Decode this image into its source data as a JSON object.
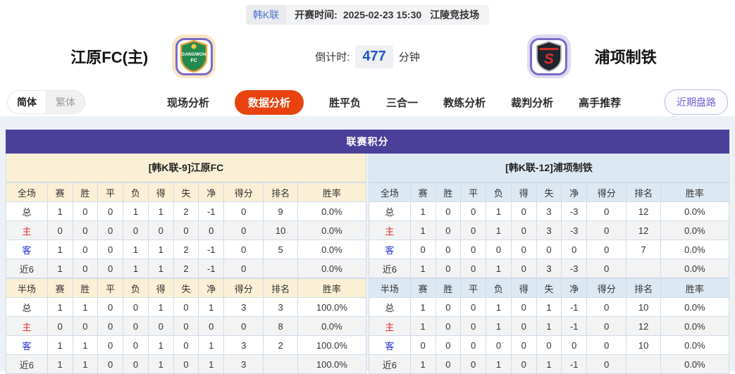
{
  "colors": {
    "accent_purple": "#4b3f99",
    "tab_active_red": "#e8430f",
    "home_header_bg": "#fbf0d6",
    "away_header_bg": "#dde9f2",
    "countdown_blue": "#1c57c4",
    "home_row_label_red": "#e02f2f",
    "away_row_label_blue": "#2334cf"
  },
  "top_bar": {
    "league": "韩K联",
    "kickoff_label": "开赛时间:",
    "kickoff_time": "2025-02-23 15:30",
    "venue": "江陵竞技场"
  },
  "match_header": {
    "home_team": "江原FC(主)",
    "home_logo_line1": "GANGWON",
    "home_logo_line2": "FC",
    "away_team": "浦项制铁",
    "away_logo_letter": "S",
    "countdown_label": "倒计时:",
    "countdown_value": "477",
    "countdown_unit": "分钟"
  },
  "nav": {
    "lang": [
      {
        "label": "简体",
        "active": true
      },
      {
        "label": "繁体",
        "active": false
      }
    ],
    "tabs": [
      {
        "label": "现场分析",
        "active": false
      },
      {
        "label": "数据分析",
        "active": true
      },
      {
        "label": "胜平负",
        "active": false
      },
      {
        "label": "三合一",
        "active": false
      },
      {
        "label": "教练分析",
        "active": false
      },
      {
        "label": "裁判分析",
        "active": false
      },
      {
        "label": "高手推荐",
        "active": false
      }
    ],
    "recent_button": "近期盘路"
  },
  "league_table": {
    "title": "联赛积分",
    "home_header": "[韩K联-9]江原FC",
    "away_header": "[韩K联-12]浦项制铁",
    "full_label": "全场",
    "half_label": "半场",
    "columns": [
      "赛",
      "胜",
      "平",
      "负",
      "得",
      "失",
      "净",
      "得分",
      "排名",
      "胜率"
    ],
    "row_labels": [
      "总",
      "主",
      "客",
      "近6"
    ],
    "home": {
      "full": [
        [
          1,
          0,
          0,
          1,
          1,
          2,
          -1,
          0,
          9,
          "0.0%"
        ],
        [
          0,
          0,
          0,
          0,
          0,
          0,
          0,
          0,
          10,
          "0.0%"
        ],
        [
          1,
          0,
          0,
          1,
          1,
          2,
          -1,
          0,
          5,
          "0.0%"
        ],
        [
          1,
          0,
          0,
          1,
          1,
          2,
          -1,
          0,
          "",
          "0.0%"
        ]
      ],
      "half": [
        [
          1,
          1,
          0,
          0,
          1,
          0,
          1,
          3,
          3,
          "100.0%"
        ],
        [
          0,
          0,
          0,
          0,
          0,
          0,
          0,
          0,
          8,
          "0.0%"
        ],
        [
          1,
          1,
          0,
          0,
          1,
          0,
          1,
          3,
          2,
          "100.0%"
        ],
        [
          1,
          1,
          0,
          0,
          1,
          0,
          1,
          3,
          "",
          "100.0%"
        ]
      ]
    },
    "away": {
      "full": [
        [
          1,
          0,
          0,
          1,
          0,
          3,
          -3,
          0,
          12,
          "0.0%"
        ],
        [
          1,
          0,
          0,
          1,
          0,
          3,
          -3,
          0,
          12,
          "0.0%"
        ],
        [
          0,
          0,
          0,
          0,
          0,
          0,
          0,
          0,
          7,
          "0.0%"
        ],
        [
          1,
          0,
          0,
          1,
          0,
          3,
          -3,
          0,
          "",
          "0.0%"
        ]
      ],
      "half": [
        [
          1,
          0,
          0,
          1,
          0,
          1,
          -1,
          0,
          10,
          "0.0%"
        ],
        [
          1,
          0,
          0,
          1,
          0,
          1,
          -1,
          0,
          12,
          "0.0%"
        ],
        [
          0,
          0,
          0,
          0,
          0,
          0,
          0,
          0,
          10,
          "0.0%"
        ],
        [
          1,
          0,
          0,
          1,
          0,
          1,
          -1,
          0,
          "",
          "0.0%"
        ]
      ]
    }
  }
}
